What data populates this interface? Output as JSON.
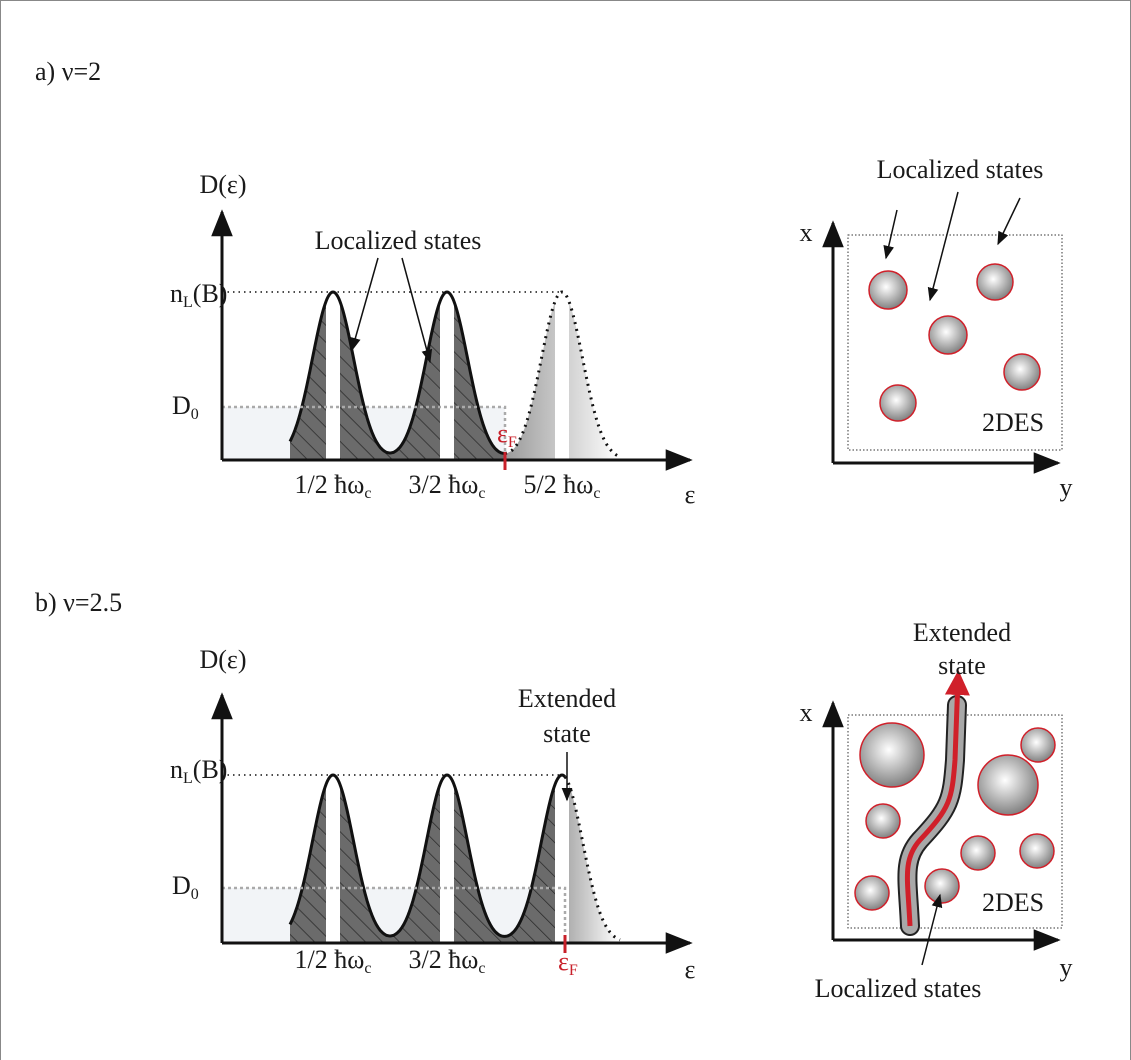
{
  "panels": [
    {
      "label": "a) ν=2",
      "dos": {
        "y_axis": "D(ε)",
        "x_axis": "ε",
        "annotation": "Localized states",
        "level": {
          "base": "n",
          "sub": "L",
          "tail": "(B)"
        },
        "baseline": {
          "base": "D",
          "sub": "0"
        },
        "fermi": {
          "base": "ε",
          "sub": "F"
        },
        "peaks": [
          {
            "base": "1/2 ħω",
            "sub": "c"
          },
          {
            "base": "3/2 ħω",
            "sub": "c"
          },
          {
            "base": "5/2 ħω",
            "sub": "c"
          }
        ]
      },
      "sample": {
        "annotation": "Localized states",
        "x_axis": "x",
        "y_axis": "y",
        "label": "2DES"
      }
    },
    {
      "label": "b) ν=2.5",
      "dos": {
        "y_axis": "D(ε)",
        "x_axis": "ε",
        "annotation": [
          "Extended",
          "state"
        ],
        "level": {
          "base": "n",
          "sub": "L",
          "tail": "(B)"
        },
        "baseline": {
          "base": "D",
          "sub": "0"
        },
        "fermi": {
          "base": "ε",
          "sub": "F"
        },
        "peaks": [
          {
            "base": "1/2 ħω",
            "sub": "c"
          },
          {
            "base": "3/2 ħω",
            "sub": "c"
          }
        ]
      },
      "sample": {
        "annotation_top": [
          "Extended",
          "state"
        ],
        "annotation_bottom": "Localized states",
        "x_axis": "x",
        "y_axis": "y",
        "label": "2DES"
      }
    }
  ]
}
